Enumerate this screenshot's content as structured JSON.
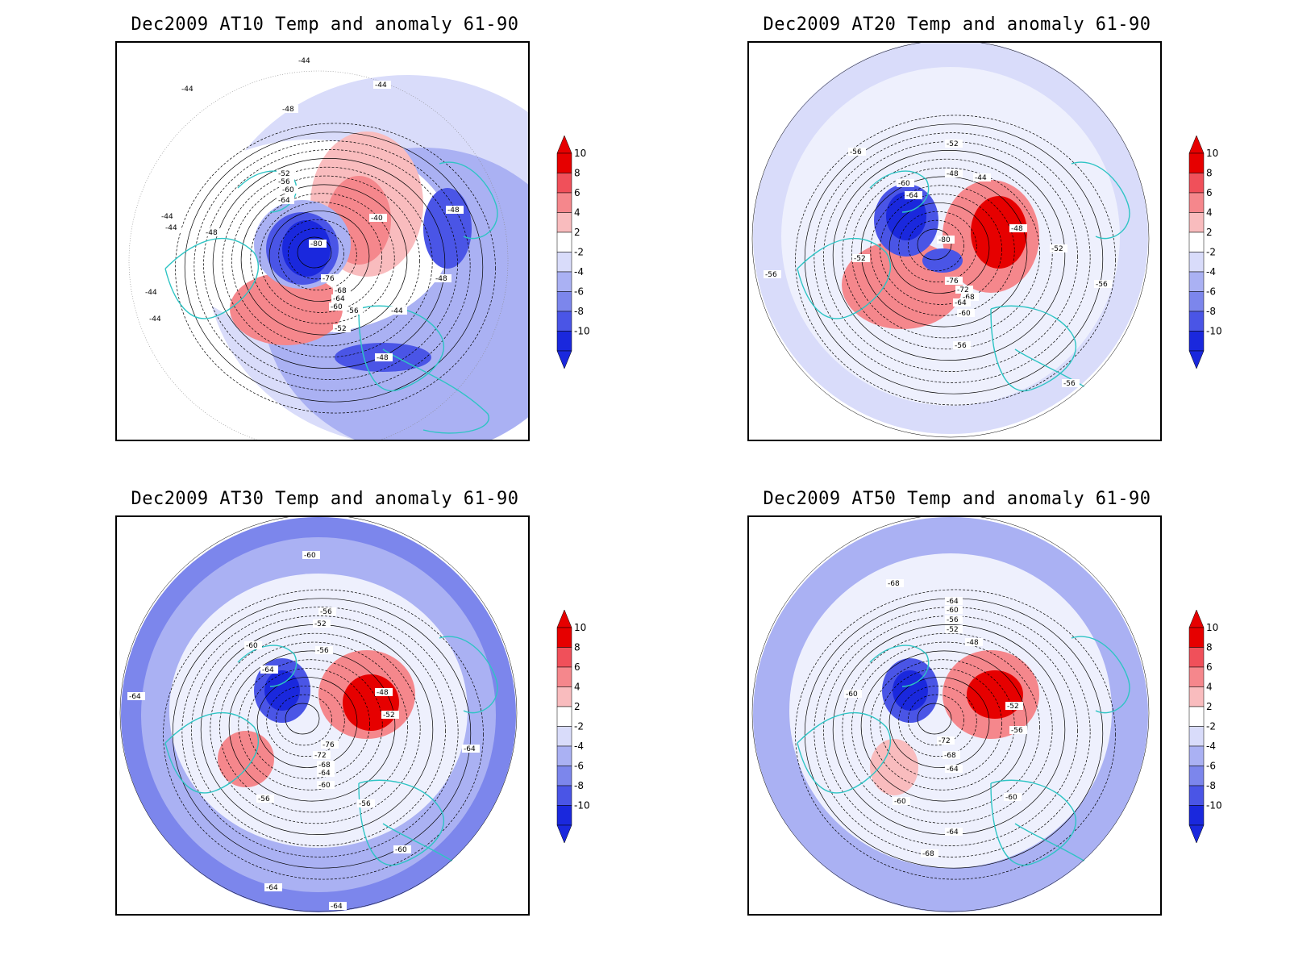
{
  "panels": [
    {
      "title": "Dec2009 AT10 Temp and anomaly 61-90",
      "contour_labels": [
        "-44",
        "-44",
        "-48",
        "-44",
        "-52",
        "-56",
        "-60",
        "-64",
        "-40",
        "-80",
        "-76",
        "-68",
        "-64",
        "-60",
        "-56",
        "-52",
        "-48",
        "-48",
        "-44",
        "-48",
        "-44",
        "-44",
        "-48",
        "-44",
        "-44"
      ]
    },
    {
      "title": "Dec2009 AT20 Temp and anomaly 61-90",
      "contour_labels": [
        "-56",
        "-52",
        "-48",
        "-44",
        "-60",
        "-64",
        "-80",
        "-48",
        "-52",
        "-56",
        "-52",
        "-76",
        "-72",
        "-68",
        "-64",
        "-60",
        "-56",
        "-56",
        "-56"
      ]
    },
    {
      "title": "Dec2009 AT30 Temp and anomaly 61-90",
      "contour_labels": [
        "-60",
        "-56",
        "-52",
        "-56",
        "-60",
        "-64",
        "-48",
        "-52",
        "-64",
        "-76",
        "-72",
        "-68",
        "-64",
        "-60",
        "-56",
        "-56",
        "-60",
        "-64",
        "-64",
        "-64"
      ]
    },
    {
      "title": "Dec2009 AT50 Temp and anomaly 61-90",
      "contour_labels": [
        "-68",
        "-64",
        "-60",
        "-56",
        "-52",
        "-48",
        "-60",
        "-52",
        "-56",
        "-72",
        "-68",
        "-64",
        "-60",
        "-60",
        "-64",
        "-68"
      ]
    }
  ],
  "colorbar": {
    "tick_labels": [
      "10",
      "8",
      "6",
      "4",
      "2",
      "-2",
      "-4",
      "-6",
      "-8",
      "-10"
    ],
    "colors": [
      "#e60000",
      "#f0505a",
      "#f5878c",
      "#f9bcbe",
      "#ffffff",
      "#d9dcfa",
      "#aab1f3",
      "#7c86ec",
      "#4a55e6",
      "#1a28dd"
    ]
  },
  "colors": {
    "coastline": "#2ec4c4",
    "contour": "#000000",
    "warm": "#e8484f",
    "cold": "#1f2ddc"
  }
}
